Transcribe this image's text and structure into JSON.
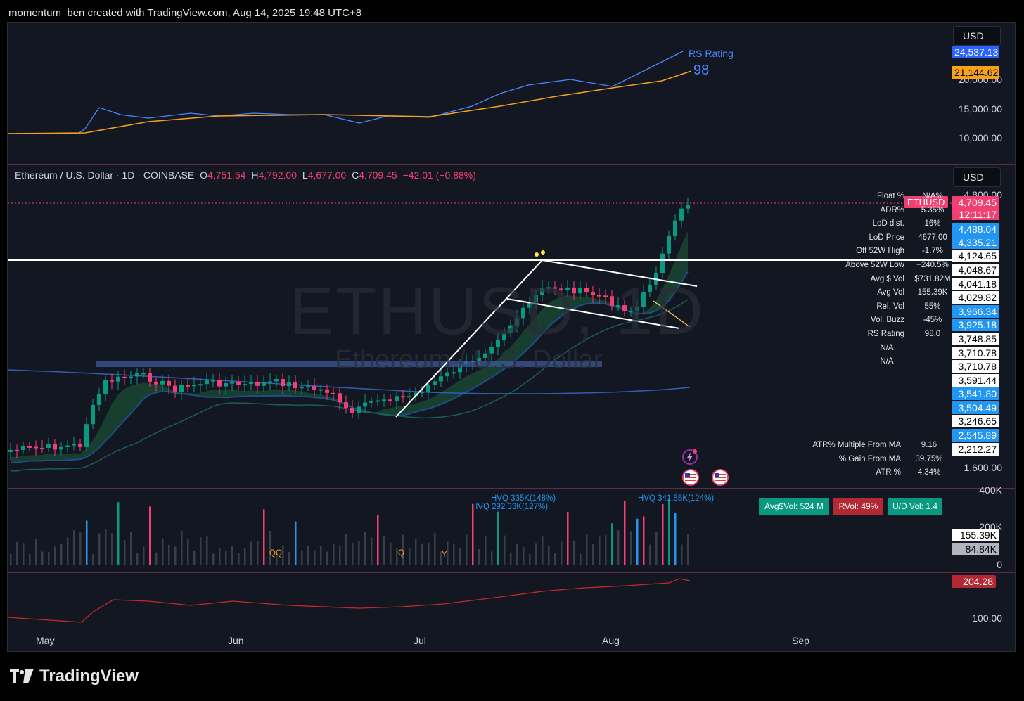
{
  "header": {
    "text": "momentum_ben created with TradingView.com, Aug 14, 2025 19:48 UTC+8"
  },
  "top_pane": {
    "currency_button": "USD",
    "rs_label": "RS Rating",
    "rs_value": "98",
    "axis_labels": [
      "20,000.00",
      "15,000.00",
      "10,000.00"
    ],
    "price_tags": [
      {
        "value": "24,537.13",
        "bg": "#2962ff",
        "fg": "#ffffff"
      },
      {
        "value": "21,144.62",
        "bg": "#f7a21b",
        "fg": "#000000"
      }
    ]
  },
  "main_pane": {
    "currency_button": "USD",
    "symbol": "Ethereum / U.S. Dollar · 1D · COINBASE",
    "ohlc": {
      "o_label": "O",
      "o": "4,751.54",
      "h_label": "H",
      "h": "4,792.00",
      "l_label": "L",
      "l": "4,677.00",
      "c_label": "C",
      "c": "4,709.45",
      "change": "−42.01 (−0.88%)"
    },
    "watermark": "ETHUSD, 1D",
    "watermark_sub": "Ethereum / U.S. Dollar",
    "symbol_badge": "ETHUSD",
    "countdown": "12:11:17",
    "axis_labels": [
      "4,800.00",
      "1,600.00"
    ],
    "price_tags": [
      {
        "value": "4,709.45",
        "bg": "#f23f72",
        "fg": "#ffffff"
      },
      {
        "value": "4,488.04",
        "bg": "#2196f3",
        "fg": "#ffffff"
      },
      {
        "value": "4,335.21",
        "bg": "#2196f3",
        "fg": "#ffffff"
      },
      {
        "value": "4,124.65",
        "bg": "#ffffff",
        "fg": "#000000"
      },
      {
        "value": "4,048.67",
        "bg": "#ffffff",
        "fg": "#000000"
      },
      {
        "value": "4,041.18",
        "bg": "#ffffff",
        "fg": "#000000"
      },
      {
        "value": "4,029.82",
        "bg": "#ffffff",
        "fg": "#000000"
      },
      {
        "value": "3,966.34",
        "bg": "#2196f3",
        "fg": "#ffffff"
      },
      {
        "value": "3,925.18",
        "bg": "#2196f3",
        "fg": "#ffffff"
      },
      {
        "value": "3,748.85",
        "bg": "#ffffff",
        "fg": "#000000"
      },
      {
        "value": "3,710.78",
        "bg": "#ffffff",
        "fg": "#000000"
      },
      {
        "value": "3,710.78",
        "bg": "#ffffff",
        "fg": "#000000"
      },
      {
        "value": "3,591.44",
        "bg": "#ffffff",
        "fg": "#000000"
      },
      {
        "value": "3,541.80",
        "bg": "#2196f3",
        "fg": "#ffffff"
      },
      {
        "value": "3,504.49",
        "bg": "#2196f3",
        "fg": "#ffffff"
      },
      {
        "value": "3,246.65",
        "bg": "#ffffff",
        "fg": "#000000"
      },
      {
        "value": "2,545.89",
        "bg": "#2196f3",
        "fg": "#ffffff"
      },
      {
        "value": "2,212.27",
        "bg": "#ffffff",
        "fg": "#000000"
      }
    ],
    "stats": [
      {
        "key": "Float %",
        "value": "N/A%"
      },
      {
        "key": "ADR%",
        "value": "5.35%"
      },
      {
        "key": "LoD dist.",
        "value": "16%"
      },
      {
        "key": "LoD Price",
        "value": "4677.00"
      },
      {
        "key": "Off 52W High",
        "value": "-1.7%"
      },
      {
        "key": "Above 52W Low",
        "value": "+240.5%"
      },
      {
        "key": "Avg $ Vol",
        "value": "$731.82M"
      },
      {
        "key": "Avg Vol",
        "value": "155.39K"
      },
      {
        "key": "Rel. Vol",
        "value": "55%"
      },
      {
        "key": "Vol. Buzz",
        "value": "-45%"
      },
      {
        "key": "RS Rating",
        "value": "98.0"
      },
      {
        "key": "",
        "value": "N/A"
      },
      {
        "key": "",
        "value": "N/A"
      }
    ],
    "atr_stats": [
      {
        "key": "ATR% Multiple From MA",
        "value": "9.16"
      },
      {
        "key": "% Gain From MA",
        "value": "39.75%"
      },
      {
        "key": "ATR %",
        "value": "4.34%"
      }
    ]
  },
  "volume_pane": {
    "axis_labels": [
      "400K",
      "200K",
      "0"
    ],
    "price_tags": [
      {
        "value": "155.39K",
        "bg": "#ffffff",
        "fg": "#000000"
      },
      {
        "value": "84.84K",
        "bg": "#b2b5be",
        "fg": "#000000"
      }
    ],
    "badges": [
      {
        "label": "Avg$Vol: 524 M",
        "bg": "#089981"
      },
      {
        "label": "RVol: 49%",
        "bg": "#b22833"
      },
      {
        "label": "U/D Vol: 1.4",
        "bg": "#089981"
      }
    ],
    "hvq_labels": [
      "HVQ 335K(148%)",
      "HVQ 292.33K(127%)",
      "HVQ 341.55K(124%)"
    ],
    "event_markers": [
      "QQ",
      "Q",
      "Y"
    ]
  },
  "rs_pane": {
    "axis_labels": [
      "100.00"
    ],
    "price_tag": {
      "value": "204.28",
      "bg": "#b22833",
      "fg": "#ffffff"
    }
  },
  "time_axis": [
    "May",
    "Jun",
    "Jul",
    "Aug",
    "Sep"
  ],
  "footer": {
    "brand": "TradingView"
  },
  "icons": [
    "flash-icon",
    "us-flag-icon",
    "tradingview-logo-icon"
  ]
}
